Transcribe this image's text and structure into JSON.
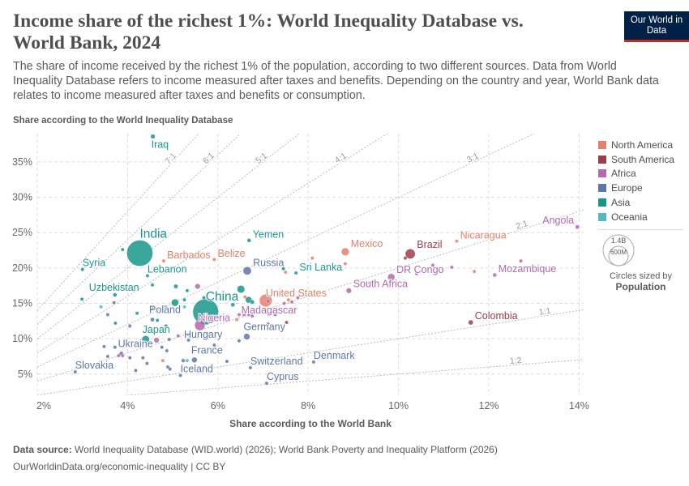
{
  "header": {
    "title": "Income share of the richest 1%: World Inequality Database vs. World Bank, 2024",
    "subtitle": "The share of income received by the richest 1% of the population, according to two different sources. Data from World Inequality Database refers to income measured after taxes and benefits. Depending on the country and year, World Bank data relates to income measured after taxes and benefits or consumption.",
    "logo": "Our World in Data"
  },
  "footer": {
    "source_label": "Data source:",
    "source": "World Inequality Database (WID.world) (2026); World Bank Poverty and Inequality Platform (2026)",
    "url": "OurWorldinData.org/economic-inequality | CC BY"
  },
  "legend": {
    "regions": [
      {
        "name": "North America",
        "color": "#e4806d"
      },
      {
        "name": "South America",
        "color": "#9b3e4c"
      },
      {
        "name": "Africa",
        "color": "#b16aac"
      },
      {
        "name": "Europe",
        "color": "#5f77a8"
      },
      {
        "name": "Asia",
        "color": "#19968b"
      },
      {
        "name": "Oceania",
        "color": "#4fb9c6"
      }
    ],
    "size_big": "1.4B",
    "size_small": "600M",
    "size_caption": "Circles sized by",
    "size_variable": "Population"
  },
  "chart_data": {
    "type": "scatter",
    "xlabel": "Share according to the World Bank",
    "ylabel": "Share according to the World Inequality Database",
    "xlim": [
      2,
      14.1
    ],
    "ylim": [
      2,
      39
    ],
    "xticks": [
      2,
      4,
      6,
      8,
      10,
      12,
      14
    ],
    "xtick_labels": [
      "2%",
      "4%",
      "6%",
      "8%",
      "10%",
      "12%",
      "14%"
    ],
    "yticks": [
      5,
      10,
      15,
      20,
      25,
      30,
      35
    ],
    "ytick_labels": [
      "5%",
      "10%",
      "15%",
      "20%",
      "25%",
      "30%",
      "35%"
    ],
    "grid": true,
    "legend_position": "right",
    "ratio_lines": [
      {
        "label": "7:1",
        "k": 7
      },
      {
        "label": "6:1",
        "k": 6
      },
      {
        "label": "5:1",
        "k": 5
      },
      {
        "label": "4:1",
        "k": 4
      },
      {
        "label": "3:1",
        "k": 3
      },
      {
        "label": "2:1",
        "k": 2
      },
      {
        "label": "1:1",
        "k": 1
      },
      {
        "label": "1:2",
        "k": 0.5
      }
    ],
    "points": [
      {
        "name": "Iraq",
        "region": "Asia",
        "x": 4.56,
        "y": 38.6,
        "pop": 45,
        "label": true
      },
      {
        "name": "India",
        "region": "Asia",
        "x": 4.27,
        "y": 22.1,
        "pop": 1440,
        "label": true,
        "big": true
      },
      {
        "name": "Barbados",
        "region": "North America",
        "x": 4.8,
        "y": 21.0,
        "pop": 0.3,
        "label": true
      },
      {
        "name": "Belize",
        "region": "North America",
        "x": 5.92,
        "y": 21.2,
        "pop": 0.4,
        "label": true
      },
      {
        "name": "Syria",
        "region": "Asia",
        "x": 3.0,
        "y": 19.8,
        "pop": 23,
        "label": true
      },
      {
        "name": "Lebanon",
        "region": "Asia",
        "x": 4.44,
        "y": 18.9,
        "pop": 5.8,
        "label": true
      },
      {
        "name": "Yemen",
        "region": "Asia",
        "x": 6.69,
        "y": 23.9,
        "pop": 34,
        "label": true
      },
      {
        "name": "Russia",
        "region": "Europe",
        "x": 6.65,
        "y": 19.6,
        "pop": 144,
        "label": true
      },
      {
        "name": "Sri Lanka",
        "region": "Asia",
        "x": 7.73,
        "y": 19.3,
        "pop": 22,
        "label": true
      },
      {
        "name": "China",
        "region": "Asia",
        "x": 5.73,
        "y": 13.8,
        "pop": 1410,
        "label": true,
        "big": true
      },
      {
        "name": "Nigeria",
        "region": "Africa",
        "x": 5.6,
        "y": 11.9,
        "pop": 230,
        "label": true
      },
      {
        "name": "United States",
        "region": "North America",
        "x": 7.06,
        "y": 15.4,
        "pop": 340,
        "label": true
      },
      {
        "name": "Madagascar",
        "region": "Africa",
        "x": 7.11,
        "y": 15.3,
        "pop": 31,
        "label": true
      },
      {
        "name": "Uzbekistan",
        "region": "Asia",
        "x": 3.72,
        "y": 16.2,
        "pop": 36,
        "label": true
      },
      {
        "name": "Poland",
        "region": "Europe",
        "x": 4.55,
        "y": 12.7,
        "pop": 37,
        "label": true
      },
      {
        "name": "Japan",
        "region": "Asia",
        "x": 4.4,
        "y": 9.9,
        "pop": 124,
        "label": true
      },
      {
        "name": "Hungary",
        "region": "Europe",
        "x": 5.34,
        "y": 10.6,
        "pop": 9.6,
        "label": true
      },
      {
        "name": "Ukraine",
        "region": "Europe",
        "x": 3.86,
        "y": 7.9,
        "pop": 38,
        "label": true
      },
      {
        "name": "Germany",
        "region": "Europe",
        "x": 6.64,
        "y": 10.3,
        "pop": 84,
        "label": true
      },
      {
        "name": "France",
        "region": "Europe",
        "x": 5.48,
        "y": 7.0,
        "pop": 66,
        "label": true
      },
      {
        "name": "Slovakia",
        "region": "Europe",
        "x": 2.84,
        "y": 5.3,
        "pop": 5.4,
        "label": true
      },
      {
        "name": "Iceland",
        "region": "Europe",
        "x": 5.17,
        "y": 4.8,
        "pop": 0.4,
        "label": true
      },
      {
        "name": "Switzerland",
        "region": "Europe",
        "x": 6.72,
        "y": 5.9,
        "pop": 8.8,
        "label": true
      },
      {
        "name": "Cyprus",
        "region": "Europe",
        "x": 7.08,
        "y": 3.7,
        "pop": 1.3,
        "label": true
      },
      {
        "name": "Denmark",
        "region": "Europe",
        "x": 8.12,
        "y": 6.7,
        "pop": 6,
        "label": true
      },
      {
        "name": "Mexico",
        "region": "North America",
        "x": 8.82,
        "y": 22.3,
        "pop": 130,
        "label": true
      },
      {
        "name": "Brazil",
        "region": "South America",
        "x": 10.26,
        "y": 22.0,
        "pop": 212,
        "label": true
      },
      {
        "name": "Nicaragua",
        "region": "North America",
        "x": 11.29,
        "y": 23.8,
        "pop": 7,
        "label": true
      },
      {
        "name": "DR Congo",
        "region": "Africa",
        "x": 9.84,
        "y": 18.7,
        "pop": 109,
        "label": true
      },
      {
        "name": "South Africa",
        "region": "Africa",
        "x": 8.9,
        "y": 16.8,
        "pop": 63,
        "label": true
      },
      {
        "name": "Mozambique",
        "region": "Africa",
        "x": 12.13,
        "y": 19.0,
        "pop": 34,
        "label": true
      },
      {
        "name": "Angola",
        "region": "Africa",
        "x": 13.96,
        "y": 25.8,
        "pop": 37,
        "label": true
      },
      {
        "name": "Colombia",
        "region": "South America",
        "x": 11.6,
        "y": 12.3,
        "pop": 52,
        "label": true
      },
      {
        "region": "Asia",
        "x": 3.89,
        "y": 22.6,
        "pop": 5
      },
      {
        "region": "Asia",
        "x": 4.55,
        "y": 17.6,
        "pop": 5
      },
      {
        "region": "Asia",
        "x": 5.07,
        "y": 17.4,
        "pop": 40
      },
      {
        "region": "Africa",
        "x": 5.55,
        "y": 17.4,
        "pop": 60
      },
      {
        "region": "Asia",
        "x": 5.32,
        "y": 16.8,
        "pop": 8
      },
      {
        "region": "Asia",
        "x": 6.51,
        "y": 17.0,
        "pop": 125
      },
      {
        "region": "Asia",
        "x": 6.68,
        "y": 15.5,
        "pop": 90
      },
      {
        "region": "Asia",
        "x": 6.76,
        "y": 15.2,
        "pop": 40
      },
      {
        "region": "Asia",
        "x": 6.33,
        "y": 14.8,
        "pop": 35
      },
      {
        "region": "Asia",
        "x": 5.05,
        "y": 15.1,
        "pop": 115
      },
      {
        "region": "Asia",
        "x": 5.26,
        "y": 15.5,
        "pop": 5
      },
      {
        "region": "Asia",
        "x": 5.69,
        "y": 15.8,
        "pop": 8
      },
      {
        "region": "Asia",
        "x": 2.99,
        "y": 15.6,
        "pop": 4
      },
      {
        "region": "Oceania",
        "x": 3.41,
        "y": 14.5,
        "pop": 3
      },
      {
        "region": "Europe",
        "x": 3.7,
        "y": 15.1,
        "pop": 4
      },
      {
        "region": "Europe",
        "x": 3.56,
        "y": 13.4,
        "pop": 3
      },
      {
        "region": "Asia",
        "x": 4.21,
        "y": 13.6,
        "pop": 3
      },
      {
        "region": "Asia",
        "x": 4.55,
        "y": 14.4,
        "pop": 3
      },
      {
        "region": "Oceania",
        "x": 4.84,
        "y": 14.5,
        "pop": 3
      },
      {
        "region": "Oceania",
        "x": 5.26,
        "y": 14.5,
        "pop": 3
      },
      {
        "region": "Asia",
        "x": 3.73,
        "y": 12.2,
        "pop": 3
      },
      {
        "region": "Europe",
        "x": 4.05,
        "y": 11.8,
        "pop": 3
      },
      {
        "region": "Asia",
        "x": 4.66,
        "y": 12.6,
        "pop": 10
      },
      {
        "region": "Asia",
        "x": 4.85,
        "y": 11.8,
        "pop": 10
      },
      {
        "region": "Africa",
        "x": 4.64,
        "y": 9.8,
        "pop": 60
      },
      {
        "region": "Europe",
        "x": 4.92,
        "y": 9.9,
        "pop": 5
      },
      {
        "region": "Africa",
        "x": 5.12,
        "y": 10.4,
        "pop": 3
      },
      {
        "region": "Europe",
        "x": 5.35,
        "y": 9.8,
        "pop": 4
      },
      {
        "region": "Europe",
        "x": 6.47,
        "y": 9.7,
        "pop": 5
      },
      {
        "region": "Europe",
        "x": 3.48,
        "y": 8.9,
        "pop": 3
      },
      {
        "region": "Europe",
        "x": 3.72,
        "y": 8.8,
        "pop": 3
      },
      {
        "region": "Europe",
        "x": 4.21,
        "y": 9.3,
        "pop": 3
      },
      {
        "region": "Europe",
        "x": 4.76,
        "y": 8.8,
        "pop": 25
      },
      {
        "region": "Europe",
        "x": 4.87,
        "y": 8.3,
        "pop": 3
      },
      {
        "region": "Europe",
        "x": 5.92,
        "y": 9.1,
        "pop": 3
      },
      {
        "region": "Europe",
        "x": 3.56,
        "y": 7.5,
        "pop": 3
      },
      {
        "region": "Africa",
        "x": 3.8,
        "y": 7.6,
        "pop": 4
      },
      {
        "region": "Africa",
        "x": 3.89,
        "y": 7.6,
        "pop": 4
      },
      {
        "region": "Europe",
        "x": 4.05,
        "y": 7.3,
        "pop": 3
      },
      {
        "region": "Europe",
        "x": 4.34,
        "y": 7.3,
        "pop": 3
      },
      {
        "region": "North America",
        "x": 4.78,
        "y": 6.9,
        "pop": 6
      },
      {
        "region": "Europe",
        "x": 5.23,
        "y": 6.9,
        "pop": 30
      },
      {
        "region": "Oceania",
        "x": 5.32,
        "y": 6.9,
        "pop": 12
      },
      {
        "region": "Europe",
        "x": 6.2,
        "y": 6.8,
        "pop": 3
      },
      {
        "region": "Europe",
        "x": 4.43,
        "y": 6.5,
        "pop": 3
      },
      {
        "region": "Europe",
        "x": 4.18,
        "y": 5.5,
        "pop": 3
      },
      {
        "region": "Europe",
        "x": 4.89,
        "y": 6.0,
        "pop": 3
      },
      {
        "region": "Europe",
        "x": 4.94,
        "y": 5.7,
        "pop": 3
      },
      {
        "region": "Africa",
        "x": 6.47,
        "y": 13.4,
        "pop": 5
      },
      {
        "region": "Africa",
        "x": 6.58,
        "y": 13.4,
        "pop": 5
      },
      {
        "region": "Africa",
        "x": 6.68,
        "y": 13.4,
        "pop": 5
      },
      {
        "region": "Africa",
        "x": 6.76,
        "y": 13.2,
        "pop": 4
      },
      {
        "region": "North America",
        "x": 6.42,
        "y": 12.7,
        "pop": 4
      },
      {
        "region": "Africa",
        "x": 7.11,
        "y": 12.1,
        "pop": 3
      },
      {
        "region": "South America",
        "x": 7.52,
        "y": 12.3,
        "pop": 3
      },
      {
        "region": "Africa",
        "x": 7.27,
        "y": 13.4,
        "pop": 3
      },
      {
        "region": "Africa",
        "x": 7.47,
        "y": 15.0,
        "pop": 4
      },
      {
        "region": "Africa",
        "x": 7.64,
        "y": 15.2,
        "pop": 4
      },
      {
        "region": "Africa",
        "x": 7.77,
        "y": 15.8,
        "pop": 3
      },
      {
        "region": "North America",
        "x": 7.56,
        "y": 15.5,
        "pop": 3
      },
      {
        "region": "North America",
        "x": 6.6,
        "y": 15.9,
        "pop": 3
      },
      {
        "region": "Asia",
        "x": 7.45,
        "y": 19.9,
        "pop": 3
      },
      {
        "region": "North America",
        "x": 7.5,
        "y": 19.4,
        "pop": 3
      },
      {
        "region": "North America",
        "x": 8.09,
        "y": 21.4,
        "pop": 3
      },
      {
        "region": "North America",
        "x": 8.82,
        "y": 20.6,
        "pop": 3
      },
      {
        "region": "Africa",
        "x": 9.3,
        "y": 17.9,
        "pop": 3
      },
      {
        "region": "Africa",
        "x": 10.4,
        "y": 19.2,
        "pop": 3
      },
      {
        "region": "Africa",
        "x": 10.76,
        "y": 20.4,
        "pop": 8
      },
      {
        "region": "Africa",
        "x": 11.18,
        "y": 20.1,
        "pop": 3
      },
      {
        "region": "North America",
        "x": 11.68,
        "y": 19.5,
        "pop": 3
      },
      {
        "region": "Africa",
        "x": 12.71,
        "y": 21.0,
        "pop": 3
      },
      {
        "region": "South America",
        "x": 10.15,
        "y": 21.4,
        "pop": 4
      }
    ]
  }
}
